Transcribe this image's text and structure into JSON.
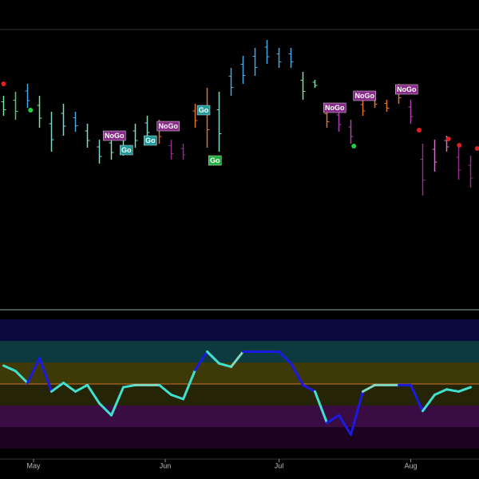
{
  "chart_data": [
    {
      "type": "ohlc",
      "x": [
        0,
        2,
        4,
        6,
        8,
        10,
        12,
        14,
        16,
        18,
        20,
        22,
        24,
        26,
        28,
        30,
        32,
        34,
        36,
        38,
        40,
        42,
        44,
        46,
        48,
        50,
        52,
        54,
        56,
        58,
        60,
        62,
        64,
        66,
        68,
        70,
        72,
        74,
        76,
        78
      ],
      "low": [
        240,
        235,
        250,
        225,
        195,
        215,
        220,
        200,
        180,
        185,
        190,
        200,
        210,
        205,
        185,
        185,
        225,
        200,
        195,
        265,
        280,
        290,
        305,
        300,
        300,
        260,
        275,
        225,
        220,
        205,
        240,
        250,
        245,
        255,
        230,
        140,
        170,
        195,
        160,
        150
      ],
      "high": [
        265,
        270,
        280,
        265,
        245,
        255,
        245,
        230,
        210,
        215,
        220,
        230,
        240,
        235,
        210,
        205,
        255,
        275,
        270,
        300,
        315,
        325,
        335,
        325,
        325,
        295,
        285,
        250,
        250,
        235,
        260,
        265,
        260,
        280,
        260,
        205,
        210,
        215,
        200,
        190
      ],
      "colors": [
        "#7fe0a0",
        "#50d070",
        "#4aa8e0",
        "#7fe0a0",
        "#7fd8c8",
        "#7fd8c8",
        "#4aa8e0",
        "#7fd8c8",
        "#7fd8c8",
        "#7fd8c8",
        "#7fd8c8",
        "#7fd8c8",
        "#7fd8c8",
        "#e07030",
        "#8a2e8a",
        "#8a2e8a",
        "#e07030",
        "#e07030",
        "#7fd8c8",
        "#4aa8e0",
        "#4aa8e0",
        "#4aa8e0",
        "#4aa8e0",
        "#4aa8e0",
        "#4aa8e0",
        "#7fe0a0",
        "#7fe0a0",
        "#e07030",
        "#b040b0",
        "#b040b0",
        "#e07030",
        "#e07030",
        "#e07030",
        "#e07030",
        "#b040b0",
        "#8a2e8a",
        "#d070c0",
        "#d070c0",
        "#8a2e8a",
        "#8a2e8a"
      ],
      "xlim": [
        -0.6,
        79.4
      ],
      "ylim": [
        0,
        348
      ],
      "annotations": [
        {
          "text": "NoGo",
          "x": 18.5,
          "y": 215,
          "color": "#8a2a8a"
        },
        {
          "text": "Go",
          "x": 20.5,
          "y": 197,
          "color": "#1f9a9a"
        },
        {
          "text": "Go",
          "x": 24.5,
          "y": 209,
          "color": "#1f9a9a"
        },
        {
          "text": "NoGo",
          "x": 27.5,
          "y": 227,
          "color": "#8a2a8a"
        },
        {
          "text": "Go",
          "x": 33.4,
          "y": 247,
          "color": "#1f9a9a"
        },
        {
          "text": "Go",
          "x": 35.3,
          "y": 184,
          "color": "#20b040"
        },
        {
          "text": "NoGo",
          "x": 55.3,
          "y": 250,
          "color": "#8a2a8a"
        },
        {
          "text": "NoGo",
          "x": 60.3,
          "y": 265,
          "color": "#8a2a8a"
        },
        {
          "text": "NoGo",
          "x": 67.3,
          "y": 273,
          "color": "#8a2a8a"
        }
      ],
      "signals": [
        {
          "x": 0,
          "y": 280,
          "color": "#e02020"
        },
        {
          "x": 4.5,
          "y": 247,
          "color": "#20d040"
        },
        {
          "x": 58.5,
          "y": 202,
          "color": "#20d040"
        },
        {
          "x": 69.4,
          "y": 222,
          "color": "#e02020"
        },
        {
          "x": 74.3,
          "y": 211,
          "color": "#e02020"
        },
        {
          "x": 76.1,
          "y": 203,
          "color": "#e02020"
        },
        {
          "x": 79.1,
          "y": 199,
          "color": "#e02020"
        }
      ]
    },
    {
      "type": "line",
      "x": [
        0,
        2,
        4,
        6,
        8,
        10,
        12,
        14,
        16,
        18,
        20,
        22,
        24,
        26,
        28,
        30,
        32,
        34,
        36,
        38,
        40,
        42,
        44,
        46,
        48,
        50,
        52,
        54,
        56,
        58,
        60,
        62,
        64,
        66,
        68,
        70,
        72,
        74,
        76,
        78
      ],
      "values": [
        1.7,
        1.2,
        0.1,
        2.4,
        -0.7,
        0.1,
        -0.7,
        -0.1,
        -1.8,
        -2.9,
        -0.3,
        -0.1,
        -0.1,
        -0.1,
        -1.0,
        -1.4,
        1.3,
        3.0,
        1.9,
        1.6,
        3.0,
        3.0,
        3.0,
        3.0,
        1.9,
        -0.1,
        -0.7,
        -3.6,
        -2.9,
        -4.7,
        -0.7,
        -0.1,
        -0.1,
        -0.1,
        -0.1,
        -2.5,
        -1.0,
        -0.5,
        -0.7,
        -0.3
      ],
      "colors": [
        "#40e0d0",
        "#40e0d0",
        "#40e0d0",
        "#1a1ae0",
        "#1a1ae0",
        "#40e0d0",
        "#40e0d0",
        "#40e0d0",
        "#40e0d0",
        "#40e0d0",
        "#40e0d0",
        "#40e0d0",
        "#80d8c0",
        "#80d8c0",
        "#40e0d0",
        "#40e0d0",
        "#40e0d0",
        "#1a1ae0",
        "#40e0d0",
        "#40e0d0",
        "#80d8c0",
        "#1a1ae0",
        "#1a1ae0",
        "#1a1ae0",
        "#1a1ae0",
        "#1a1ae0",
        "#1a1ae0",
        "#40e0d0",
        "#1a1ae0",
        "#1a1ae0",
        "#1a1ae0",
        "#80d8c0",
        "#80d8c0",
        "#80d8c0",
        "#1a1ae0",
        "#1a1ae0",
        "#40e0d0",
        "#40e0d0",
        "#40e0d0",
        "#40e0d0"
      ],
      "xlim": [
        -0.6,
        79.4
      ],
      "ylim": [
        -6,
        6
      ],
      "bands": [
        {
          "from": 4,
          "to": 6,
          "color": "#0a0a40"
        },
        {
          "from": 2,
          "to": 4,
          "color": "#0c3a3e"
        },
        {
          "from": 0,
          "to": 2,
          "color": "#3e3a08"
        },
        {
          "from": -2,
          "to": 0,
          "color": "#262406"
        },
        {
          "from": -4,
          "to": -2,
          "color": "#3a0c44"
        },
        {
          "from": -6,
          "to": -4,
          "color": "#1c0420"
        }
      ],
      "xticks": [
        {
          "value": 5,
          "label": "May"
        },
        {
          "value": 27,
          "label": "Jun"
        },
        {
          "value": 46,
          "label": "Jul"
        },
        {
          "value": 68,
          "label": "Aug"
        }
      ]
    }
  ]
}
